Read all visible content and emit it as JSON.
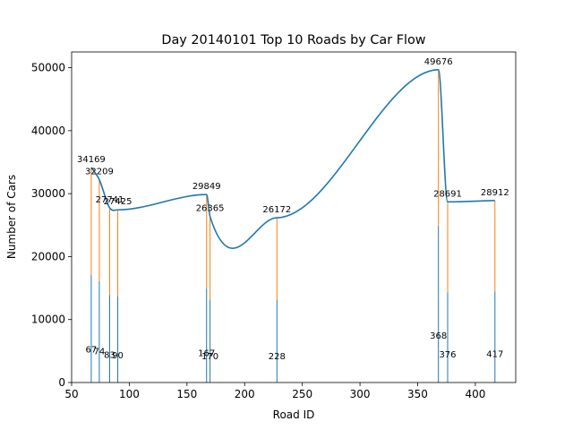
{
  "chart_data": {
    "type": "line",
    "title": "Day 20140101 Top 10 Roads by Car Flow",
    "xlabel": "Road ID",
    "ylabel": "Number of Cars",
    "xlim": [
      50,
      435
    ],
    "ylim": [
      0,
      52500
    ],
    "xticks": [
      50,
      100,
      150,
      200,
      250,
      300,
      350,
      400
    ],
    "yticks": [
      0,
      10000,
      20000,
      30000,
      40000,
      50000
    ],
    "grid": false,
    "series": [
      {
        "values_by_road": [
          {
            "x": 67,
            "y": 34169
          },
          {
            "x": 74,
            "y": 32209
          },
          {
            "x": 83,
            "y": 27741
          },
          {
            "x": 90,
            "y": 27425
          },
          {
            "x": 167,
            "y": 29849
          },
          {
            "x": 170,
            "y": 26365
          },
          {
            "x": 228,
            "y": 26172
          },
          {
            "x": 368,
            "y": 49676
          },
          {
            "x": 376,
            "y": 28691
          },
          {
            "x": 417,
            "y": 28912
          }
        ]
      }
    ],
    "stems": {
      "lower_color": "#1f77b4",
      "upper_color": "#ff7f0e",
      "lower_fraction": 0.5
    },
    "colors": {
      "line": "#1f77b4",
      "stem_lower": "#1f77b4",
      "stem_upper": "#ff7f0e"
    }
  }
}
